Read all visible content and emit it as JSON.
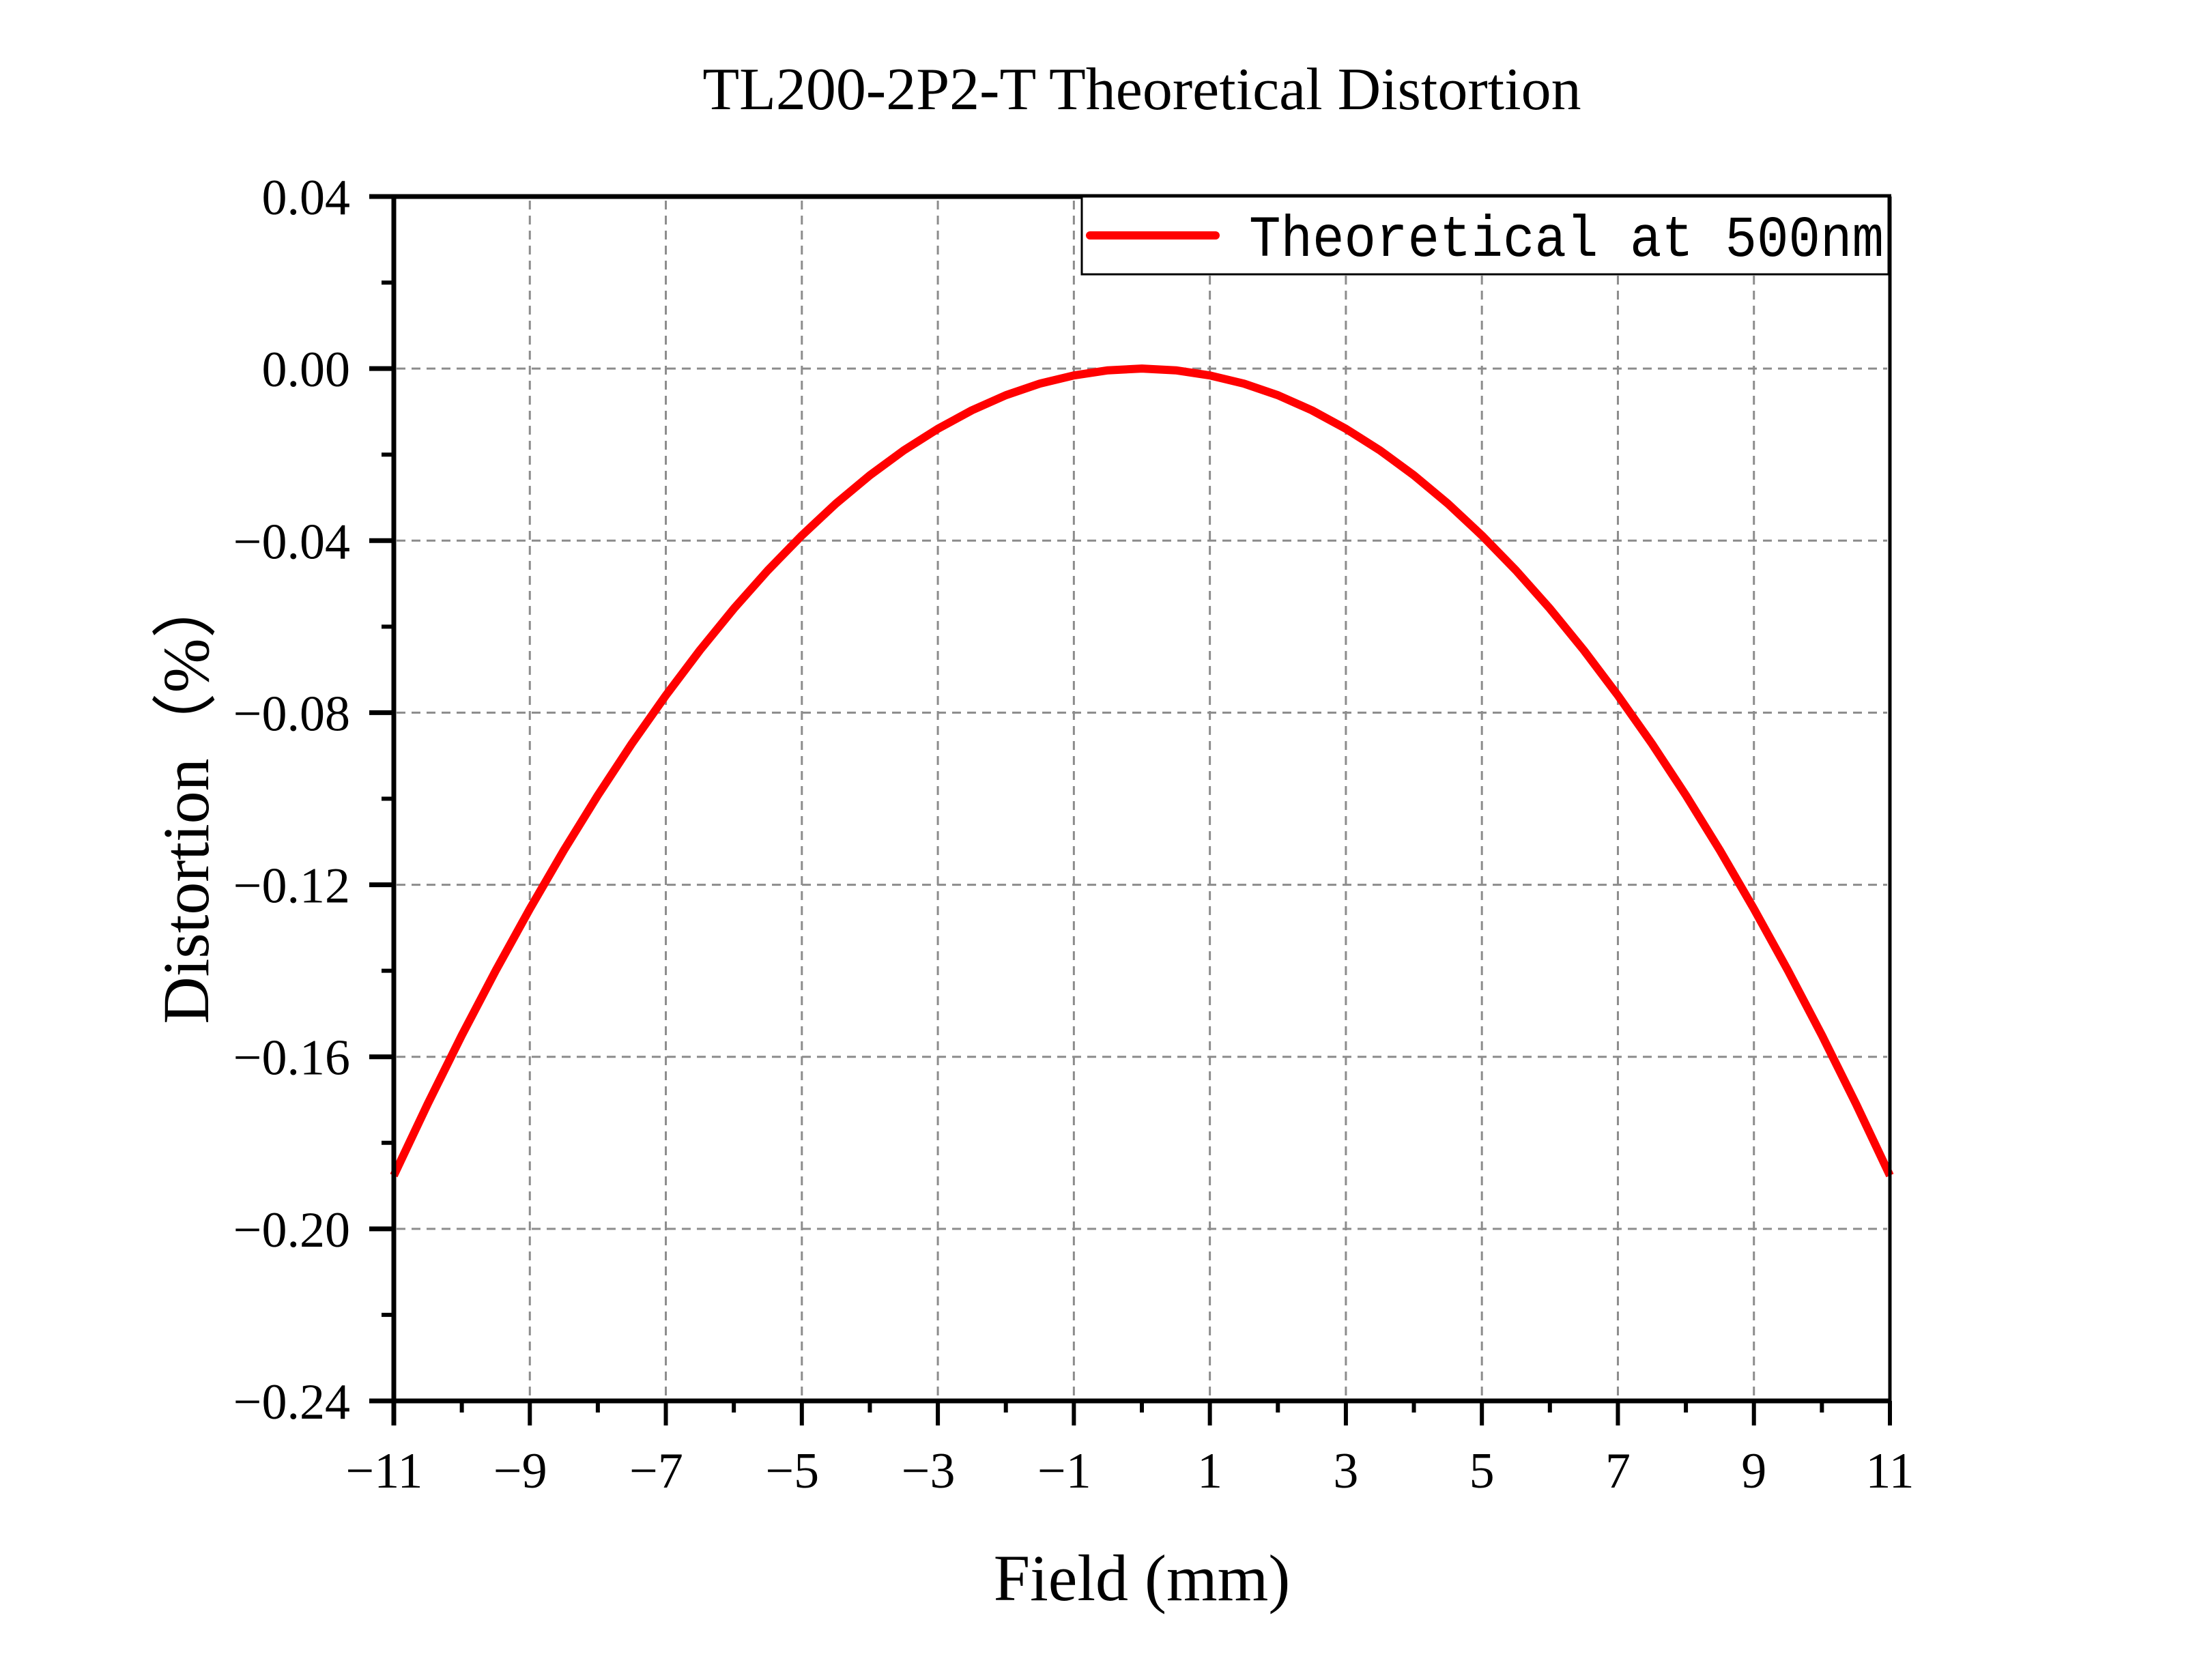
{
  "chart_data": {
    "type": "line",
    "title": "TL200-2P2-T Theoretical Distortion",
    "xlabel": "Field (mm)",
    "ylabel": "Distortion（%）",
    "xlim": [
      -11,
      11
    ],
    "ylim": [
      -0.24,
      0.04
    ],
    "xticks": [
      -11,
      -9,
      -7,
      -5,
      -3,
      -1,
      1,
      3,
      5,
      7,
      9,
      11
    ],
    "xtick_labels": [
      "−11",
      "−9",
      "−7",
      "−5",
      "−3",
      "−1",
      "1",
      "3",
      "5",
      "7",
      "9",
      "11"
    ],
    "xminor_ticks": [
      -10,
      -8,
      -6,
      -4,
      -2,
      0,
      2,
      4,
      6,
      8,
      10
    ],
    "yticks": [
      0.04,
      0.0,
      -0.04,
      -0.08,
      -0.12,
      -0.16,
      -0.2,
      -0.24
    ],
    "ytick_labels": [
      "0.04",
      "0.00",
      "−0.04",
      "−0.08",
      "−0.12",
      "−0.16",
      "−0.20",
      "−0.24"
    ],
    "yminor_ticks": [
      0.02,
      -0.02,
      -0.06,
      -0.1,
      -0.14,
      -0.18,
      -0.22
    ],
    "grid": true,
    "grid_style": "dashed",
    "legend_position": "top-right",
    "series": [
      {
        "name": "Theoretical at 500nm",
        "color": "#ff0000",
        "x": [
          -11,
          -10.5,
          -10,
          -9.5,
          -9,
          -8.5,
          -8,
          -7.5,
          -7,
          -6.5,
          -6,
          -5.5,
          -5,
          -4.5,
          -4,
          -3.5,
          -3,
          -2.5,
          -2,
          -1.5,
          -1,
          -0.5,
          0,
          0.5,
          1,
          1.5,
          2,
          2.5,
          3,
          3.5,
          4,
          4.5,
          5,
          5.5,
          6,
          6.5,
          7,
          7.5,
          8,
          8.5,
          9,
          9.5,
          10,
          10.5,
          11
        ],
        "y": [
          -0.1876,
          -0.1709,
          -0.155,
          -0.1399,
          -0.1256,
          -0.112,
          -0.0992,
          -0.0872,
          -0.076,
          -0.0655,
          -0.0558,
          -0.0469,
          -0.0388,
          -0.0314,
          -0.0248,
          -0.019,
          -0.014,
          -0.0097,
          -0.0062,
          -0.0035,
          -0.0016,
          -0.0004,
          0.0,
          -0.0004,
          -0.0016,
          -0.0035,
          -0.0062,
          -0.0097,
          -0.014,
          -0.019,
          -0.0248,
          -0.0314,
          -0.0388,
          -0.0469,
          -0.0558,
          -0.0655,
          -0.076,
          -0.0872,
          -0.0992,
          -0.112,
          -0.1256,
          -0.1399,
          -0.155,
          -0.1709,
          -0.1876
        ]
      }
    ]
  }
}
